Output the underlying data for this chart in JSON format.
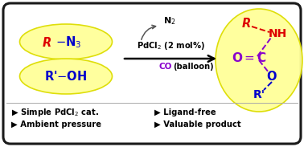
{
  "bg_color": "#ffffff",
  "border_color": "#1a1a1a",
  "ellipse_face": "#ffff99",
  "ellipse_edge": "#dddd00",
  "arrow_color": "#000000",
  "n2_arrow_color": "#555555",
  "purple": "#8800cc",
  "red": "#dd0000",
  "blue": "#0000cc",
  "black": "#000000",
  "bullet1_left": "▶ Simple PdCl₂ cat.",
  "bullet2_left": "▶ Ambient pressure",
  "bullet1_right": "▶ Ligand-free",
  "bullet2_right": "▶ Valuable product"
}
